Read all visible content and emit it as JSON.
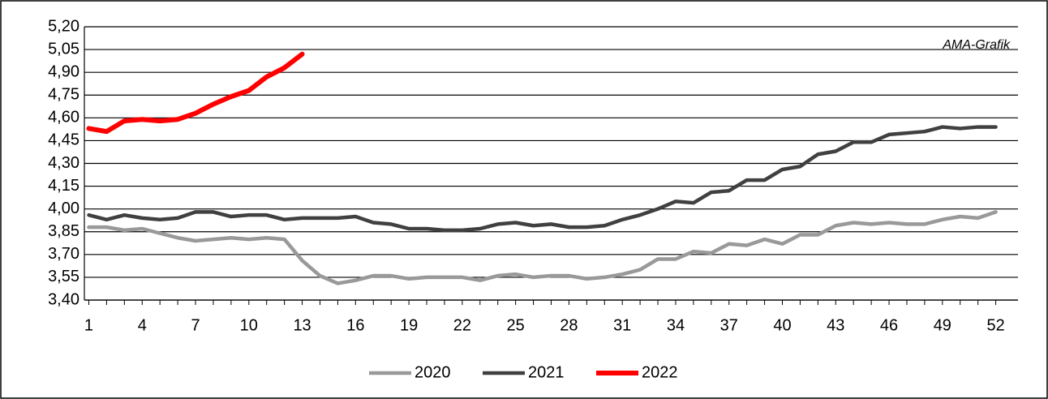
{
  "chart_data": {
    "type": "line",
    "annotation": "AMA-Grafik",
    "x": [
      1,
      2,
      3,
      4,
      5,
      6,
      7,
      8,
      9,
      10,
      11,
      12,
      13,
      14,
      15,
      16,
      17,
      18,
      19,
      20,
      21,
      22,
      23,
      24,
      25,
      26,
      27,
      28,
      29,
      30,
      31,
      32,
      33,
      34,
      35,
      36,
      37,
      38,
      39,
      40,
      41,
      42,
      43,
      44,
      45,
      46,
      47,
      48,
      49,
      50,
      51,
      52
    ],
    "series": [
      {
        "name": "2020",
        "color": "#999999",
        "values": [
          3.88,
          3.88,
          3.86,
          3.87,
          3.84,
          3.81,
          3.79,
          3.8,
          3.81,
          3.8,
          3.81,
          3.8,
          3.66,
          3.56,
          3.51,
          3.53,
          3.56,
          3.56,
          3.54,
          3.55,
          3.55,
          3.55,
          3.53,
          3.56,
          3.57,
          3.55,
          3.56,
          3.56,
          3.54,
          3.55,
          3.57,
          3.6,
          3.67,
          3.67,
          3.72,
          3.71,
          3.77,
          3.76,
          3.8,
          3.77,
          3.83,
          3.83,
          3.89,
          3.91,
          3.9,
          3.91,
          3.9,
          3.9,
          3.93,
          3.95,
          3.94,
          3.98
        ]
      },
      {
        "name": "2021",
        "color": "#404040",
        "values": [
          3.96,
          3.93,
          3.96,
          3.94,
          3.93,
          3.94,
          3.98,
          3.98,
          3.95,
          3.96,
          3.96,
          3.93,
          3.94,
          3.94,
          3.94,
          3.95,
          3.91,
          3.9,
          3.87,
          3.87,
          3.86,
          3.86,
          3.87,
          3.9,
          3.91,
          3.89,
          3.9,
          3.88,
          3.88,
          3.89,
          3.93,
          3.96,
          4.0,
          4.05,
          4.04,
          4.11,
          4.12,
          4.19,
          4.19,
          4.26,
          4.28,
          4.36,
          4.38,
          4.44,
          4.44,
          4.49,
          4.5,
          4.51,
          4.54,
          4.53,
          4.54,
          4.54
        ]
      },
      {
        "name": "2022",
        "color": "#ff0000",
        "values": [
          4.53,
          4.51,
          4.58,
          4.59,
          4.58,
          4.59,
          4.63,
          4.69,
          4.74,
          4.78,
          4.87,
          4.93,
          5.02,
          null,
          null,
          null,
          null,
          null,
          null,
          null,
          null,
          null,
          null,
          null,
          null,
          null,
          null,
          null,
          null,
          null,
          null,
          null,
          null,
          null,
          null,
          null,
          null,
          null,
          null,
          null,
          null,
          null,
          null,
          null,
          null,
          null,
          null,
          null,
          null,
          null,
          null,
          null
        ]
      }
    ],
    "xlim": [
      0.75,
      53.25
    ],
    "xticks": [
      1,
      4,
      7,
      10,
      13,
      16,
      19,
      22,
      25,
      28,
      31,
      34,
      37,
      40,
      43,
      46,
      49,
      52
    ],
    "ylim": [
      3.4,
      5.2
    ],
    "yticks": [
      {
        "value": 3.4,
        "label": "3,40"
      },
      {
        "value": 3.55,
        "label": "3,55"
      },
      {
        "value": 3.7,
        "label": "3,70"
      },
      {
        "value": 3.85,
        "label": "3,85"
      },
      {
        "value": 4.0,
        "label": "4,00"
      },
      {
        "value": 4.15,
        "label": "4,15"
      },
      {
        "value": 4.3,
        "label": "4,30"
      },
      {
        "value": 4.45,
        "label": "4,45"
      },
      {
        "value": 4.6,
        "label": "4,60"
      },
      {
        "value": 4.75,
        "label": "4,75"
      },
      {
        "value": 4.9,
        "label": "4,90"
      },
      {
        "value": 5.05,
        "label": "5,05"
      },
      {
        "value": 5.2,
        "label": "5,20"
      }
    ],
    "grid": true,
    "legend": "bottom"
  }
}
